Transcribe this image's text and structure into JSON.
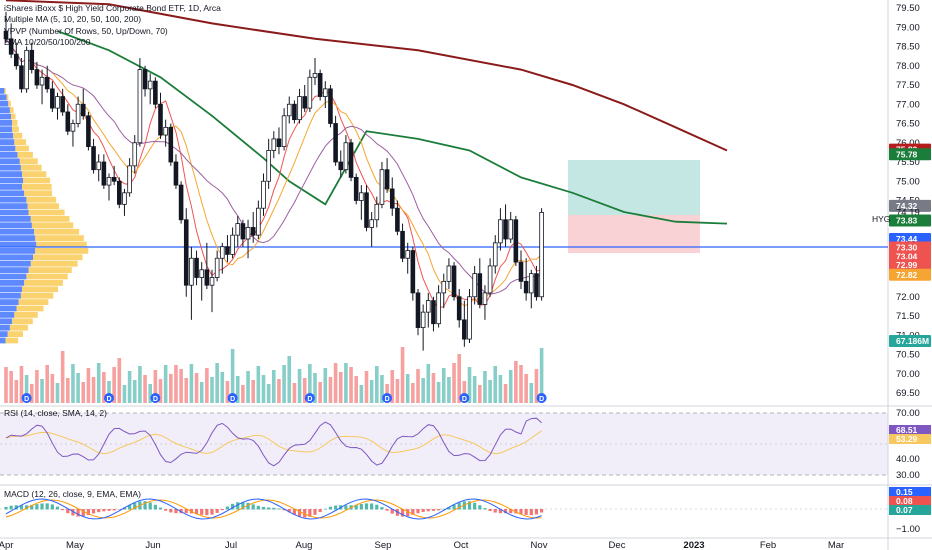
{
  "legend": {
    "title": "iShares iBoxx $ High Yield Corporate Bond ETF, 1D, Arca",
    "multiple_ma": "Multiple MA (5, 10, 20, 50, 100, 200)",
    "vpvp": "VPVP (Number Of Rows, 50, Up/Down, 70)",
    "ema": "EMA 10/20/50/100/200",
    "rsi": "RSI (14, close, SMA, 14, 2)",
    "macd": "MACD (12, 26, close, 9, EMA, EMA)"
  },
  "colors": {
    "up": "#26a69a",
    "down": "#ef5350",
    "ma200": "#8b1a1a",
    "ma50": "#1b7d3a",
    "ma_orange": "#f6a532",
    "ma_purple": "#9c5fa0",
    "ma_red": "#ef5350",
    "poc_line": "#2962ff",
    "vp_blue": "#2962ff",
    "vp_yellow": "#f8c440",
    "rsi_line": "#7e57c2",
    "rsi_ma": "#f6c85f",
    "macd_line": "#2962ff",
    "signal_line": "#ff9800",
    "tp_zone": "#b2dfdb",
    "sl_zone": "#f8c7cb"
  },
  "price_axis": {
    "ticks": [
      "79.50",
      "79.00",
      "78.50",
      "78.00",
      "77.50",
      "77.00",
      "76.50",
      "76.00",
      "75.50",
      "75.00",
      "74.50",
      "74.00",
      "73.50",
      "73.00",
      "72.50",
      "72.00",
      "71.50",
      "71.00",
      "70.50",
      "70.00",
      "69.50"
    ],
    "tags": [
      {
        "label": "75.82",
        "value": 75.82,
        "color": "#b71c1c"
      },
      {
        "label": "75.78",
        "value": 75.7,
        "color": "#1b7d3a"
      },
      {
        "label": "74.32",
        "value": 74.36,
        "color": "#787b86"
      },
      {
        "label": "74.19",
        "value": 74.19,
        "color": "none"
      },
      {
        "label": "73.83",
        "value": 73.98,
        "color": "#1b7d3a"
      },
      {
        "label": "73.44",
        "value": 73.5,
        "color": "#2962ff"
      },
      {
        "label": "73.30",
        "value": 73.28,
        "color": "#ef5350"
      },
      {
        "label": "73.04",
        "value": 73.04,
        "color": "#ef5350"
      },
      {
        "label": "72.99",
        "value": 72.82,
        "color": "#ef5350"
      },
      {
        "label": "72.82",
        "value": 72.57,
        "color": "#f6a532"
      },
      {
        "label": "67.186M",
        "value": 70.85,
        "color": "#26a69a"
      }
    ],
    "symbol": "HYG"
  },
  "time_axis": [
    "Apr",
    "May",
    "Jun",
    "Jul",
    "Aug",
    "Sep",
    "Oct",
    "Nov",
    "Dec",
    "2023",
    "Feb",
    "Mar"
  ],
  "rsi_axis": {
    "ticks": [
      "70.00",
      "40.00",
      "30.00"
    ],
    "tags": [
      {
        "label": "68.51",
        "color": "#7e57c2"
      },
      {
        "label": "53.29",
        "color": "#f6c85f"
      }
    ]
  },
  "macd_axis": {
    "ticks": [
      "−1.00"
    ],
    "tags": [
      {
        "label": "0.15",
        "color": "#2962ff"
      },
      {
        "label": "0.08",
        "color": "#ef5350"
      },
      {
        "label": "0.07",
        "color": "#26a69a"
      }
    ]
  },
  "chart_data": {
    "type": "candlestick",
    "symbol": "HYG",
    "ylim": [
      69.3,
      79.8
    ],
    "position": {
      "entry": 74.19,
      "take_profit": 75.78,
      "stop_loss": 73.44
    },
    "poc": 73.44,
    "ma200": [
      [
        0,
        79.7
      ],
      [
        20,
        79.6
      ],
      [
        40,
        79.1
      ],
      [
        60,
        78.7
      ],
      [
        80,
        78.4
      ],
      [
        100,
        77.9
      ],
      [
        110,
        77.5
      ],
      [
        120,
        77.0
      ],
      [
        130,
        76.4
      ],
      [
        140,
        75.8
      ]
    ],
    "ma50": [
      [
        10,
        78.9
      ],
      [
        20,
        78.4
      ],
      [
        30,
        77.7
      ],
      [
        40,
        76.7
      ],
      [
        50,
        75.6
      ],
      [
        55,
        75.0
      ],
      [
        62,
        74.4
      ],
      [
        70,
        76.3
      ],
      [
        80,
        76.1
      ],
      [
        90,
        75.8
      ],
      [
        100,
        75.1
      ],
      [
        110,
        74.7
      ],
      [
        120,
        74.2
      ],
      [
        130,
        73.95
      ],
      [
        140,
        73.9
      ]
    ],
    "candles": [
      [
        78.9,
        79.4,
        78.6,
        78.7
      ],
      [
        78.7,
        79.1,
        78.2,
        78.3
      ],
      [
        78.3,
        78.6,
        77.9,
        78.0
      ],
      [
        78.0,
        78.2,
        77.3,
        77.4
      ],
      [
        77.4,
        78.5,
        77.3,
        78.4
      ],
      [
        78.4,
        78.6,
        77.8,
        77.9
      ],
      [
        77.9,
        78.1,
        77.4,
        77.5
      ],
      [
        77.5,
        77.9,
        77.0,
        77.7
      ],
      [
        77.7,
        78.0,
        77.3,
        77.4
      ],
      [
        77.4,
        77.6,
        76.8,
        76.9
      ],
      [
        76.9,
        77.3,
        76.6,
        77.2
      ],
      [
        77.2,
        77.4,
        76.7,
        76.8
      ],
      [
        76.8,
        77.0,
        76.2,
        76.3
      ],
      [
        76.3,
        76.6,
        75.9,
        76.5
      ],
      [
        76.5,
        77.2,
        76.4,
        77.0
      ],
      [
        77.0,
        77.4,
        76.6,
        76.7
      ],
      [
        76.7,
        76.8,
        75.8,
        75.9
      ],
      [
        75.9,
        76.1,
        75.2,
        75.3
      ],
      [
        75.3,
        75.7,
        75.0,
        75.5
      ],
      [
        75.5,
        75.7,
        74.8,
        74.9
      ],
      [
        74.9,
        75.2,
        74.5,
        75.1
      ],
      [
        75.1,
        75.4,
        74.9,
        75.0
      ],
      [
        75.0,
        75.1,
        74.3,
        74.4
      ],
      [
        74.4,
        74.8,
        74.1,
        74.7
      ],
      [
        74.7,
        75.6,
        74.6,
        75.4
      ],
      [
        75.4,
        76.2,
        75.2,
        76.0
      ],
      [
        76.0,
        78.2,
        75.9,
        77.9
      ],
      [
        77.9,
        78.0,
        77.2,
        77.4
      ],
      [
        77.4,
        77.8,
        77.0,
        77.6
      ],
      [
        77.6,
        77.7,
        76.9,
        77.0
      ],
      [
        77.0,
        77.3,
        76.1,
        76.2
      ],
      [
        76.2,
        76.6,
        75.9,
        76.4
      ],
      [
        76.4,
        76.5,
        75.4,
        75.5
      ],
      [
        75.5,
        75.7,
        74.8,
        74.9
      ],
      [
        74.9,
        75.0,
        73.9,
        74.0
      ],
      [
        74.0,
        74.3,
        72.0,
        72.3
      ],
      [
        72.3,
        73.3,
        71.4,
        73.0
      ],
      [
        73.0,
        73.2,
        72.3,
        72.5
      ],
      [
        72.5,
        72.9,
        71.9,
        72.7
      ],
      [
        72.7,
        73.4,
        72.2,
        72.3
      ],
      [
        72.3,
        72.7,
        71.6,
        72.5
      ],
      [
        72.5,
        73.2,
        72.4,
        73.0
      ],
      [
        73.0,
        73.4,
        72.6,
        73.3
      ],
      [
        73.3,
        73.6,
        72.9,
        73.1
      ],
      [
        73.1,
        73.8,
        73.0,
        73.6
      ],
      [
        73.6,
        74.1,
        73.3,
        73.9
      ],
      [
        73.9,
        74.0,
        73.3,
        73.5
      ],
      [
        73.5,
        74.0,
        73.0,
        73.8
      ],
      [
        73.8,
        74.2,
        73.4,
        73.6
      ],
      [
        73.6,
        74.5,
        73.5,
        74.3
      ],
      [
        74.3,
        75.2,
        74.1,
        75.0
      ],
      [
        75.0,
        76.1,
        74.8,
        75.8
      ],
      [
        75.8,
        76.3,
        75.6,
        76.1
      ],
      [
        76.1,
        76.4,
        75.7,
        75.9
      ],
      [
        75.9,
        76.9,
        75.8,
        76.7
      ],
      [
        76.7,
        77.2,
        76.5,
        77.0
      ],
      [
        77.0,
        77.1,
        76.5,
        76.6
      ],
      [
        76.6,
        77.4,
        76.5,
        77.2
      ],
      [
        77.2,
        77.5,
        76.8,
        76.9
      ],
      [
        76.9,
        77.9,
        76.8,
        77.7
      ],
      [
        77.7,
        78.2,
        77.5,
        77.8
      ],
      [
        77.8,
        77.9,
        77.1,
        77.2
      ],
      [
        77.2,
        77.6,
        76.9,
        77.4
      ],
      [
        77.4,
        77.5,
        76.4,
        76.5
      ],
      [
        76.5,
        76.7,
        75.4,
        75.5
      ],
      [
        75.5,
        75.8,
        75.1,
        75.3
      ],
      [
        75.3,
        76.2,
        75.2,
        76.0
      ],
      [
        76.0,
        76.1,
        75.0,
        75.1
      ],
      [
        75.1,
        75.2,
        74.4,
        74.5
      ],
      [
        74.5,
        74.9,
        74.0,
        74.7
      ],
      [
        74.7,
        74.9,
        73.7,
        73.8
      ],
      [
        73.8,
        74.2,
        73.3,
        74.0
      ],
      [
        74.0,
        74.6,
        73.8,
        74.4
      ],
      [
        74.4,
        75.5,
        74.3,
        75.3
      ],
      [
        75.3,
        75.6,
        74.7,
        74.8
      ],
      [
        74.8,
        75.1,
        74.1,
        74.3
      ],
      [
        74.3,
        74.5,
        73.6,
        73.7
      ],
      [
        73.7,
        73.9,
        72.9,
        73.0
      ],
      [
        73.0,
        73.4,
        72.6,
        73.2
      ],
      [
        73.2,
        73.3,
        71.9,
        72.1
      ],
      [
        72.1,
        72.2,
        71.0,
        71.2
      ],
      [
        71.2,
        71.8,
        70.6,
        71.6
      ],
      [
        71.6,
        72.1,
        71.2,
        71.9
      ],
      [
        71.9,
        72.0,
        71.1,
        71.3
      ],
      [
        71.3,
        72.3,
        71.2,
        72.1
      ],
      [
        72.1,
        72.6,
        71.7,
        72.4
      ],
      [
        72.4,
        73.0,
        72.2,
        72.8
      ],
      [
        72.8,
        72.9,
        71.9,
        72.0
      ],
      [
        72.0,
        72.2,
        71.2,
        71.4
      ],
      [
        71.4,
        71.9,
        70.7,
        70.9
      ],
      [
        70.9,
        72.2,
        70.8,
        72.0
      ],
      [
        72.0,
        72.8,
        71.8,
        72.6
      ],
      [
        72.6,
        73.0,
        71.7,
        71.8
      ],
      [
        71.8,
        72.3,
        71.4,
        72.1
      ],
      [
        72.1,
        73.0,
        72.0,
        72.8
      ],
      [
        72.8,
        73.6,
        72.6,
        73.4
      ],
      [
        73.4,
        74.3,
        73.2,
        74.0
      ],
      [
        74.0,
        74.4,
        73.3,
        73.5
      ],
      [
        73.5,
        74.2,
        73.4,
        74.0
      ],
      [
        74.0,
        74.1,
        72.8,
        72.9
      ],
      [
        72.9,
        73.2,
        72.2,
        72.4
      ],
      [
        72.4,
        73.0,
        71.9,
        72.1
      ],
      [
        72.1,
        72.7,
        71.7,
        72.6
      ],
      [
        72.6,
        72.8,
        71.9,
        72.0
      ],
      [
        72.0,
        74.3,
        71.9,
        74.19
      ]
    ]
  }
}
